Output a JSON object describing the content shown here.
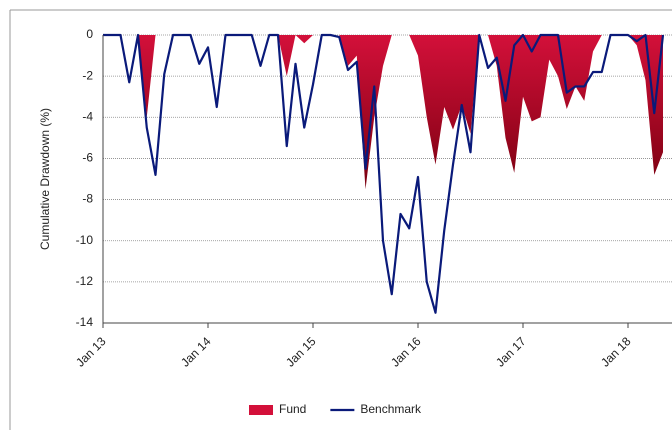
{
  "chart_data": {
    "type": "area-line",
    "y_label": "Cumulative Drawdown (%)",
    "x": [
      "2013-01",
      "2013-02",
      "2013-03",
      "2013-04",
      "2013-05",
      "2013-06",
      "2013-07",
      "2013-08",
      "2013-09",
      "2013-10",
      "2013-11",
      "2013-12",
      "2014-01",
      "2014-02",
      "2014-03",
      "2014-04",
      "2014-05",
      "2014-06",
      "2014-07",
      "2014-08",
      "2014-09",
      "2014-10",
      "2014-11",
      "2014-12",
      "2015-01",
      "2015-02",
      "2015-03",
      "2015-04",
      "2015-05",
      "2015-06",
      "2015-07",
      "2015-08",
      "2015-09",
      "2015-10",
      "2015-11",
      "2015-12",
      "2016-01",
      "2016-02",
      "2016-03",
      "2016-04",
      "2016-05",
      "2016-06",
      "2016-07",
      "2016-08",
      "2016-09",
      "2016-10",
      "2016-11",
      "2016-12",
      "2017-01",
      "2017-02",
      "2017-03",
      "2017-04",
      "2017-05",
      "2017-06",
      "2017-07",
      "2017-08",
      "2017-09",
      "2017-10",
      "2017-11",
      "2017-12",
      "2018-01",
      "2018-02",
      "2018-03",
      "2018-04",
      "2018-05"
    ],
    "xticks": [
      {
        "value": "2013-01",
        "label": "Jan 13"
      },
      {
        "value": "2014-01",
        "label": "Jan 14"
      },
      {
        "value": "2015-01",
        "label": "Jan 15"
      },
      {
        "value": "2016-01",
        "label": "Jan 16"
      },
      {
        "value": "2017-01",
        "label": "Jan 17"
      },
      {
        "value": "2018-01",
        "label": "Jan 18"
      }
    ],
    "ylim": [
      -14,
      0
    ],
    "yticks": [
      0,
      -2,
      -4,
      -6,
      -8,
      -10,
      -12,
      -14
    ],
    "grid": true,
    "series": [
      {
        "name": "Fund",
        "kind": "area",
        "color": "#d3103a",
        "values": [
          0,
          0,
          0,
          0,
          0,
          -4,
          0,
          0,
          0,
          0,
          0,
          0,
          0,
          0,
          0,
          0,
          0,
          0,
          0,
          0,
          0,
          -2,
          0,
          -0.4,
          0,
          0,
          0,
          0,
          -1.5,
          -1,
          -7.5,
          -4,
          -1.5,
          0,
          0,
          0,
          -1,
          -4,
          -6.3,
          -3.5,
          -4.6,
          -3.4,
          -4.8,
          0,
          0,
          -1.5,
          -5,
          -6.7,
          -3,
          -4.2,
          -4,
          -1.2,
          -2,
          -3.6,
          -2.5,
          -3.2,
          -0.8,
          0,
          0,
          0,
          0,
          -0.5,
          -2.2,
          -6.8,
          -5.7
        ]
      },
      {
        "name": "Benchmark",
        "kind": "line",
        "color": "#0a1a7a",
        "values": [
          0,
          0,
          0,
          -2.3,
          0,
          -4.5,
          -6.8,
          -1.9,
          0,
          0,
          0,
          -1.4,
          -0.6,
          -3.5,
          0,
          0,
          0,
          0,
          -1.5,
          0,
          0,
          -5.4,
          -1.4,
          -4.5,
          -2.4,
          0,
          0,
          -0.1,
          -1.7,
          -1.3,
          -6.5,
          -2.5,
          -10,
          -12.6,
          -8.7,
          -9.4,
          -6.9,
          -12,
          -13.5,
          -9.5,
          -6.3,
          -3.4,
          -5.7,
          0,
          -1.6,
          -1.1,
          -3.2,
          -0.5,
          0,
          -0.8,
          0,
          0,
          0,
          -2.8,
          -2.5,
          -2.5,
          -1.8,
          -1.8,
          0,
          0,
          0,
          -0.3,
          0,
          -3.8,
          0
        ]
      }
    ]
  }
}
